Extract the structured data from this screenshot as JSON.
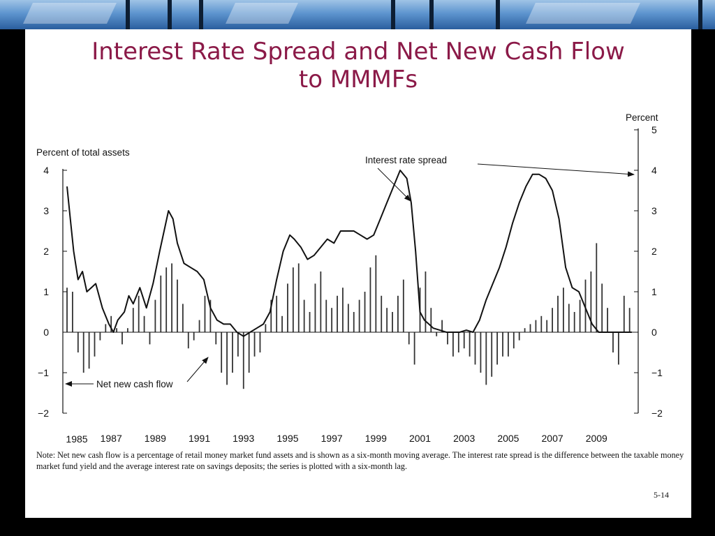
{
  "slide": {
    "title_line1": "Interest Rate Spread and Net New Cash Flow",
    "title_line2": "to MMMFs",
    "note": "Note: Net new cash flow is a percentage of retail money market fund assets and is shown as a six-month moving average. The interest rate spread is the difference between the taxable money market fund yield and the average interest rate on savings deposits; the series is plotted with a six-month lag.",
    "page_number": "5-14"
  },
  "chart_data": {
    "type": "bar+line",
    "left_axis_label": "Percent of total assets",
    "right_axis_label": "Percent",
    "left_ylim": [
      -2,
      4
    ],
    "right_ylim": [
      -2,
      5
    ],
    "left_ticks": [
      "4",
      "3",
      "2",
      "1",
      "0",
      "−1",
      "−2"
    ],
    "right_ticks": [
      "5",
      "4",
      "3",
      "2",
      "1",
      "0",
      "−1",
      "−2"
    ],
    "x_ticks": [
      "1985",
      "1987",
      "1989",
      "1991",
      "1993",
      "1995",
      "1997",
      "1999",
      "2001",
      "2003",
      "2005",
      "2007",
      "2009"
    ],
    "xlim": [
      1985.0,
      2010.7
    ],
    "annotations": {
      "spread": "Interest rate spread",
      "cash_flow": "Net new cash flow"
    },
    "series": [
      {
        "name": "Net new cash flow",
        "kind": "bar",
        "x": [
          1985.0,
          1985.25,
          1985.5,
          1985.75,
          1986.0,
          1986.25,
          1986.5,
          1986.75,
          1987.0,
          1987.25,
          1987.5,
          1987.75,
          1988.0,
          1988.25,
          1988.5,
          1988.75,
          1989.0,
          1989.25,
          1989.5,
          1989.75,
          1990.0,
          1990.25,
          1990.5,
          1990.75,
          1991.0,
          1991.25,
          1991.5,
          1991.75,
          1992.0,
          1992.25,
          1992.5,
          1992.75,
          1993.0,
          1993.25,
          1993.5,
          1993.75,
          1994.0,
          1994.25,
          1994.5,
          1994.75,
          1995.0,
          1995.25,
          1995.5,
          1995.75,
          1996.0,
          1996.25,
          1996.5,
          1996.75,
          1997.0,
          1997.25,
          1997.5,
          1997.75,
          1998.0,
          1998.25,
          1998.5,
          1998.75,
          1999.0,
          1999.25,
          1999.5,
          1999.75,
          2000.0,
          2000.25,
          2000.5,
          2000.75,
          2001.0,
          2001.25,
          2001.5,
          2001.75,
          2002.0,
          2002.25,
          2002.5,
          2002.75,
          2003.0,
          2003.25,
          2003.5,
          2003.75,
          2004.0,
          2004.25,
          2004.5,
          2004.75,
          2005.0,
          2005.25,
          2005.5,
          2005.75,
          2006.0,
          2006.25,
          2006.5,
          2006.75,
          2007.0,
          2007.25,
          2007.5,
          2007.75,
          2008.0,
          2008.25,
          2008.5,
          2008.75,
          2009.0,
          2009.25,
          2009.5,
          2009.75,
          2010.0,
          2010.25,
          2010.5
        ],
        "values": [
          1.1,
          1.0,
          -0.5,
          -1.0,
          -0.9,
          -0.6,
          -0.2,
          0.2,
          0.4,
          0.1,
          -0.3,
          0.1,
          0.6,
          0.9,
          0.4,
          -0.3,
          0.8,
          1.4,
          1.6,
          1.7,
          1.3,
          0.7,
          -0.4,
          -0.2,
          0.3,
          0.9,
          0.8,
          -0.3,
          -1.0,
          -1.3,
          -1.0,
          -0.6,
          -1.4,
          -1.0,
          -0.6,
          -0.5,
          0.2,
          0.8,
          0.9,
          0.4,
          1.2,
          1.6,
          1.7,
          0.8,
          0.5,
          1.2,
          1.5,
          0.8,
          0.6,
          0.9,
          1.1,
          0.7,
          0.5,
          0.8,
          1.0,
          1.6,
          1.9,
          0.9,
          0.6,
          0.5,
          0.9,
          1.3,
          -0.3,
          -0.8,
          1.1,
          1.5,
          0.6,
          -0.1,
          0.3,
          -0.3,
          -0.6,
          -0.5,
          -0.4,
          -0.6,
          -0.8,
          -1.0,
          -1.3,
          -1.1,
          -0.8,
          -0.6,
          -0.6,
          -0.4,
          -0.2,
          0.1,
          0.2,
          0.3,
          0.4,
          0.3,
          0.6,
          0.9,
          1.1,
          0.7,
          0.5,
          0.8,
          1.3,
          1.5,
          2.2,
          1.2,
          0.6,
          -0.5,
          -0.8,
          0.9,
          0.6
        ]
      },
      {
        "name": "Interest rate spread",
        "kind": "line",
        "axis": "right",
        "x": [
          1985.0,
          1985.15,
          1985.3,
          1985.5,
          1985.7,
          1985.9,
          1986.1,
          1986.3,
          1986.6,
          1986.9,
          1987.1,
          1987.3,
          1987.6,
          1987.8,
          1988.0,
          1988.3,
          1988.6,
          1988.9,
          1989.2,
          1989.4,
          1989.6,
          1989.8,
          1990.0,
          1990.3,
          1990.6,
          1990.9,
          1991.2,
          1991.5,
          1991.8,
          1992.1,
          1992.4,
          1992.7,
          1993.0,
          1993.3,
          1993.6,
          1993.9,
          1994.2,
          1994.5,
          1994.8,
          1995.1,
          1995.3,
          1995.6,
          1995.9,
          1996.2,
          1996.5,
          1996.8,
          1997.1,
          1997.4,
          1997.7,
          1998.0,
          1998.3,
          1998.6,
          1998.9,
          1999.2,
          1999.5,
          1999.8,
          2000.1,
          2000.4,
          2000.6,
          2000.8,
          2001.0,
          2001.2,
          2001.4,
          2001.6,
          2001.9,
          2002.2,
          2002.5,
          2002.8,
          2003.1,
          2003.4,
          2003.7,
          2004.0,
          2004.3,
          2004.6,
          2004.9,
          2005.2,
          2005.5,
          2005.8,
          2006.1,
          2006.4,
          2006.7,
          2007.0,
          2007.3,
          2007.6,
          2007.9,
          2008.2,
          2008.5,
          2008.8,
          2009.1,
          2009.4,
          2009.7,
          2010.0,
          2010.3,
          2010.6
        ],
        "values": [
          3.6,
          2.8,
          2.0,
          1.3,
          1.5,
          1.0,
          1.1,
          1.2,
          0.6,
          0.2,
          0.0,
          0.3,
          0.5,
          0.9,
          0.7,
          1.1,
          0.6,
          1.2,
          2.0,
          2.5,
          3.0,
          2.8,
          2.2,
          1.7,
          1.6,
          1.5,
          1.3,
          0.6,
          0.3,
          0.2,
          0.2,
          0.0,
          -0.1,
          0.0,
          0.1,
          0.2,
          0.5,
          1.3,
          2.0,
          2.4,
          2.3,
          2.1,
          1.8,
          1.9,
          2.1,
          2.3,
          2.2,
          2.5,
          2.5,
          2.5,
          2.4,
          2.3,
          2.4,
          2.8,
          3.2,
          3.6,
          4.0,
          3.8,
          3.2,
          2.0,
          0.5,
          0.3,
          0.2,
          0.1,
          0.05,
          0.0,
          0.0,
          0.0,
          0.05,
          0.0,
          0.3,
          0.8,
          1.2,
          1.6,
          2.1,
          2.7,
          3.2,
          3.6,
          3.9,
          3.9,
          3.8,
          3.5,
          2.8,
          1.6,
          1.1,
          1.0,
          0.6,
          0.2,
          0.0,
          0.0,
          0.0,
          0.0,
          0.0,
          0.0
        ]
      }
    ]
  }
}
